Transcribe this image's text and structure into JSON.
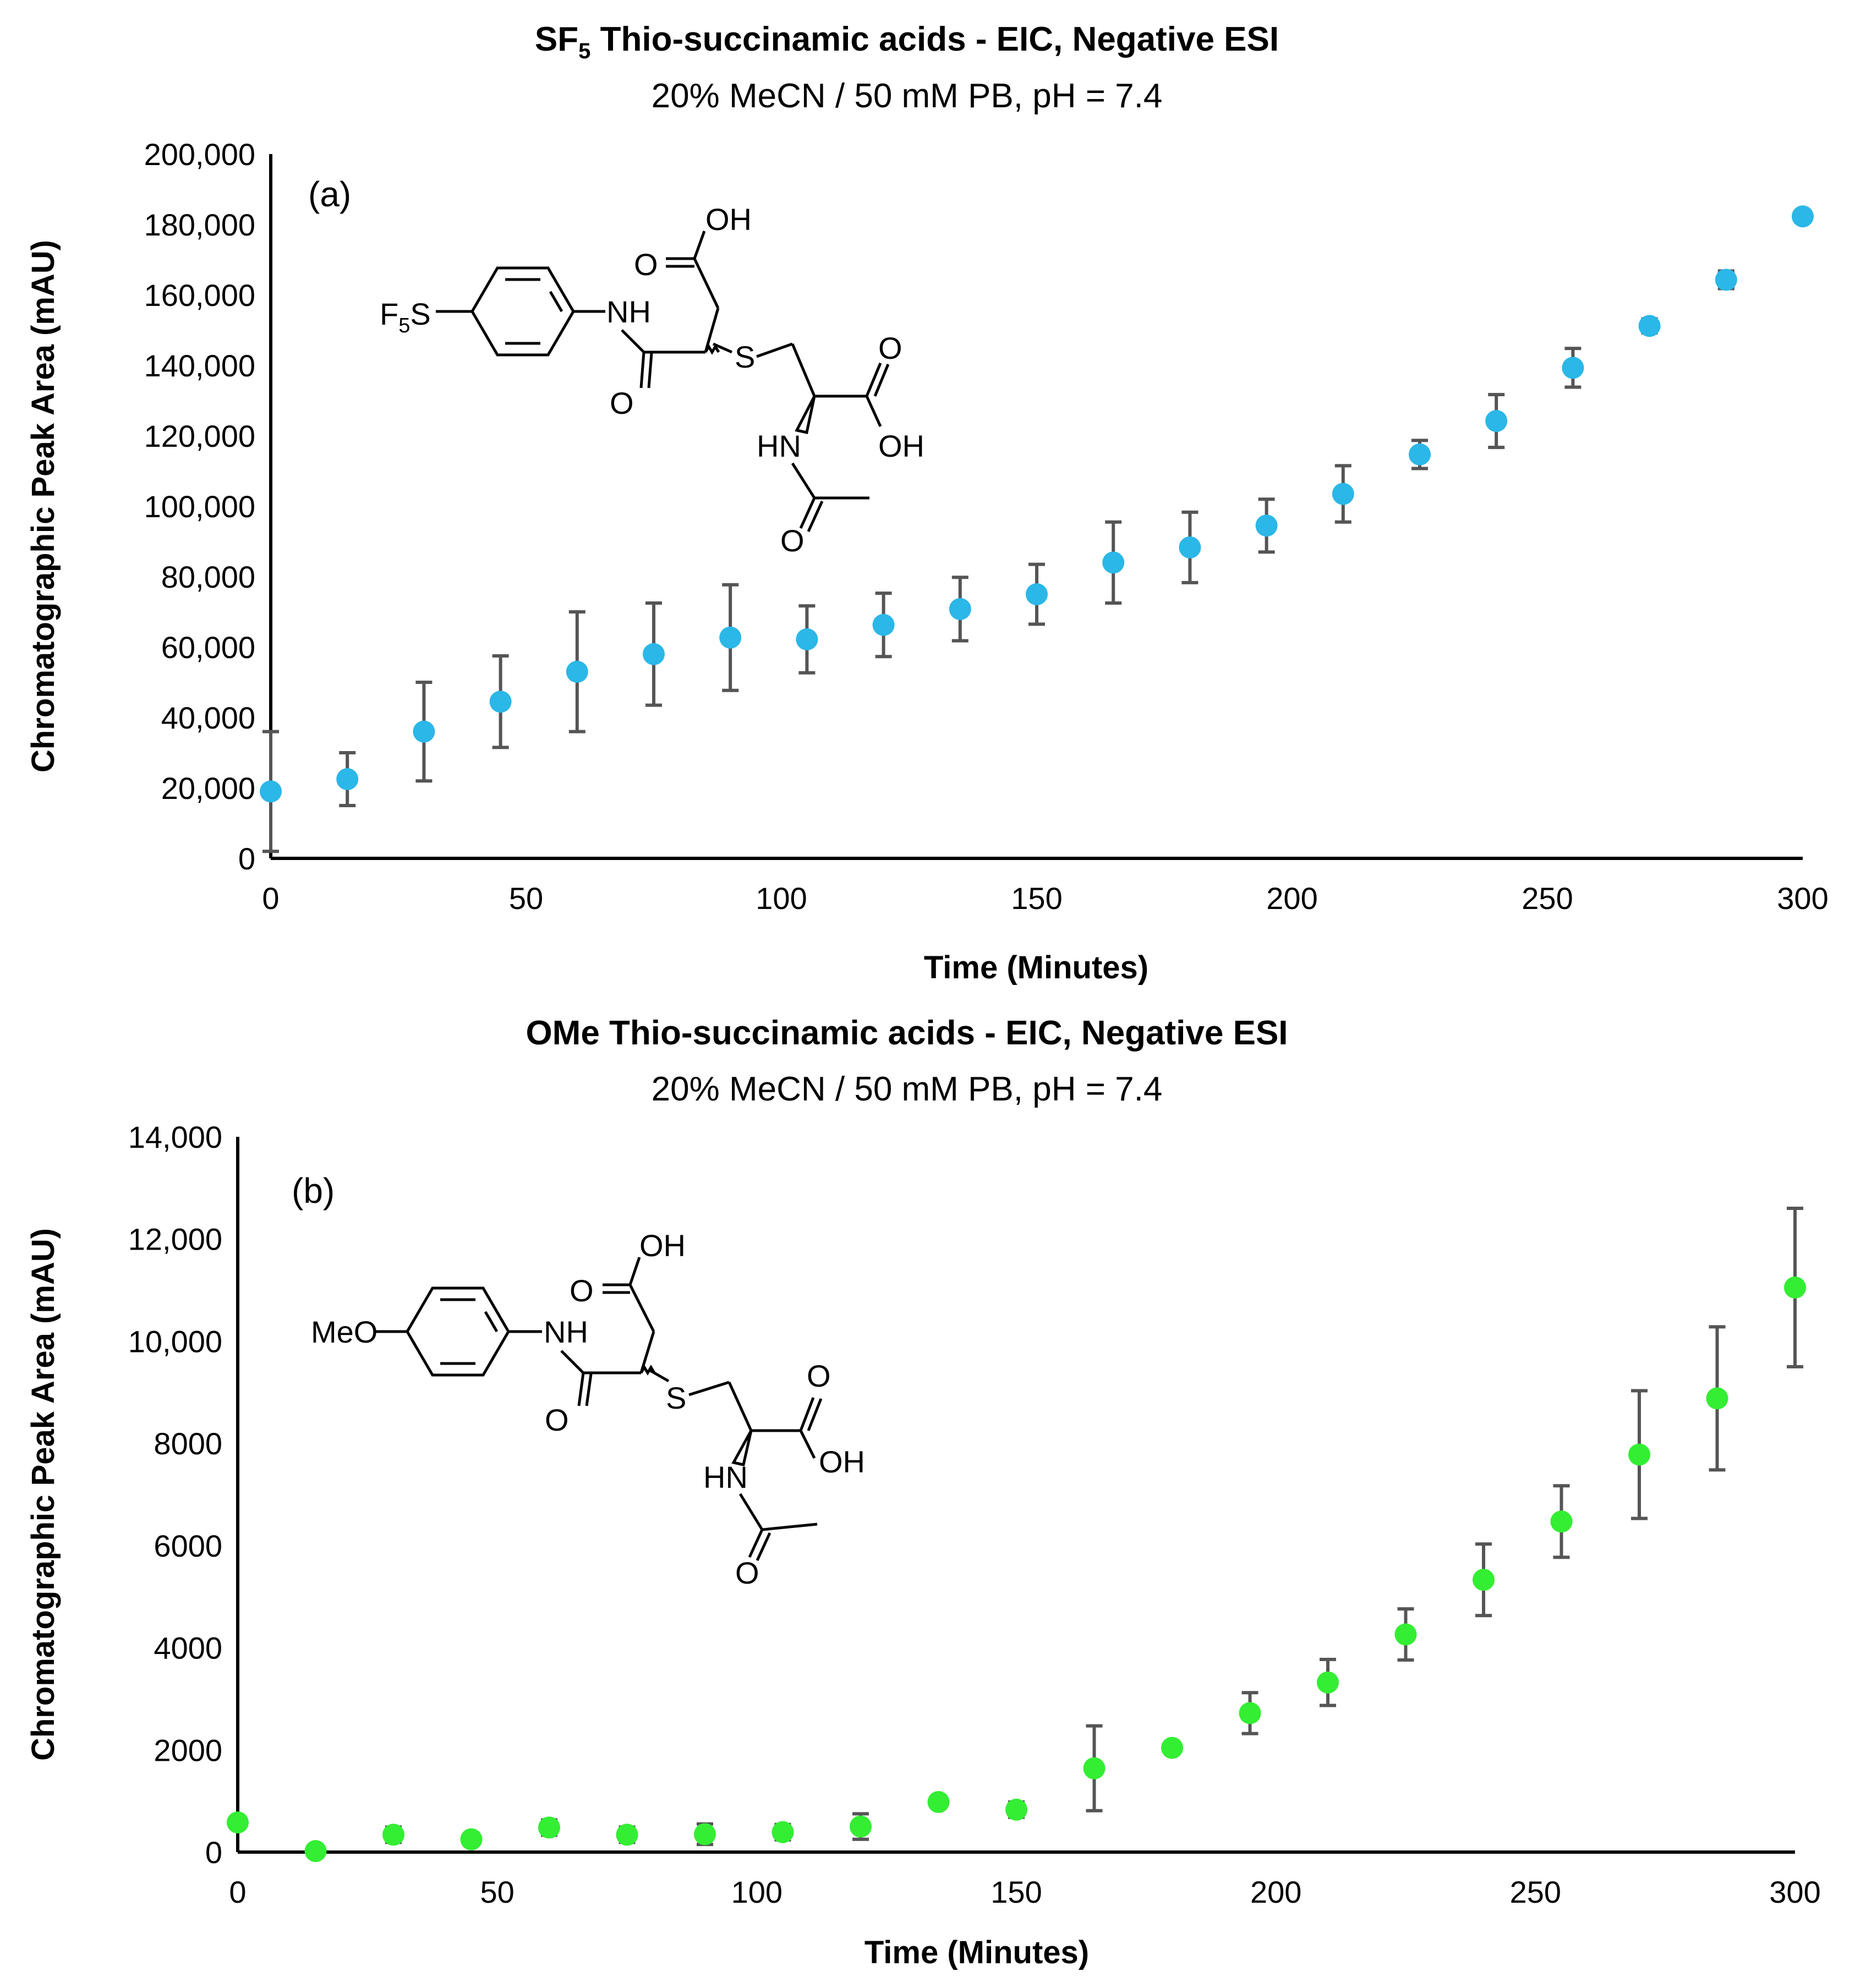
{
  "chart_data": [
    {
      "type": "scatter",
      "panel_label_text": "(a)",
      "title_main": "SF",
      "title_sub": "5",
      "title_rest": " Thio-succinamic acids - EIC, Negative ESI",
      "subtitle": "20% MeCN / 50 mM PB, pH = 7.4",
      "xlabel": "Time (Minutes)",
      "ylabel": "Chromatographic Peak Area  (mAU)",
      "xlim": [
        0,
        300
      ],
      "ylim": [
        0,
        200000
      ],
      "x_ticks": [
        "0",
        "50",
        "100",
        "150",
        "200",
        "250",
        "300"
      ],
      "y_ticks": [
        "0",
        "20,000",
        "40,000",
        "60,000",
        "80,000",
        "100,000",
        "120,000",
        "140,000",
        "160,000",
        "180,000",
        "200,000"
      ],
      "marker_color": "#2bb7e8",
      "error_color": "#555555",
      "x": [
        0,
        15,
        30,
        45,
        60,
        75,
        90,
        105,
        120,
        135,
        150,
        165,
        180,
        195,
        210,
        225,
        240,
        255,
        270,
        285,
        300
      ],
      "y": [
        19000,
        22500,
        36000,
        44500,
        53000,
        58000,
        62700,
        62200,
        66300,
        70800,
        75000,
        84000,
        88300,
        94500,
        103500,
        114700,
        124200,
        139300,
        151200,
        164300,
        182300
      ],
      "err": [
        17000,
        7500,
        14000,
        13000,
        17000,
        14500,
        15000,
        9500,
        9000,
        9000,
        8500,
        11500,
        10000,
        7500,
        8000,
        4000,
        7500,
        5500,
        2000,
        2500,
        1200
      ],
      "structure_labels": {
        "substituent_main": "F",
        "substituent_sub": "5",
        "substituent_end": "S",
        "nh": "NH",
        "oh_top": "OH",
        "o_top": "O",
        "o_amide": "O",
        "s": "S",
        "o_acid": "O",
        "oh_acid": "OH",
        "hn": "HN",
        "o_acetyl": "O"
      }
    },
    {
      "type": "scatter",
      "panel_label_text": "(b)",
      "title_main": "OMe Thio-succinamic acids - EIC, Negative ESI",
      "subtitle": "20% MeCN / 50 mM PB, pH = 7.4",
      "xlabel": "Time (Minutes)",
      "ylabel": "Chromatographic Peak Area (mAU)",
      "xlim": [
        0,
        300
      ],
      "ylim": [
        0,
        14000
      ],
      "x_ticks": [
        "0",
        "50",
        "100",
        "150",
        "200",
        "250",
        "300"
      ],
      "y_ticks": [
        "0",
        "2000",
        "4000",
        "6000",
        "8000",
        "10,000",
        "12,000",
        "14,000"
      ],
      "marker_color": "#33ee33",
      "error_color": "#555555",
      "x": [
        0,
        15,
        30,
        45,
        60,
        75,
        90,
        105,
        120,
        135,
        150,
        165,
        180,
        195,
        210,
        225,
        240,
        255,
        270,
        285,
        300
      ],
      "y": [
        580,
        20,
        340,
        250,
        480,
        340,
        350,
        390,
        500,
        980,
        830,
        1640,
        2040,
        2720,
        3320,
        4260,
        5330,
        6470,
        7780,
        8880,
        11050
      ],
      "err": [
        50,
        50,
        150,
        100,
        150,
        150,
        200,
        150,
        250,
        100,
        150,
        830,
        100,
        400,
        450,
        500,
        700,
        700,
        1250,
        1400,
        1550
      ],
      "structure_labels": {
        "substituent_main": "MeO",
        "nh": "NH",
        "oh_top": "OH",
        "o_top": "O",
        "o_amide": "O",
        "s": "S",
        "o_acid": "O",
        "oh_acid": "OH",
        "hn": "HN",
        "o_acetyl": "O"
      }
    }
  ]
}
